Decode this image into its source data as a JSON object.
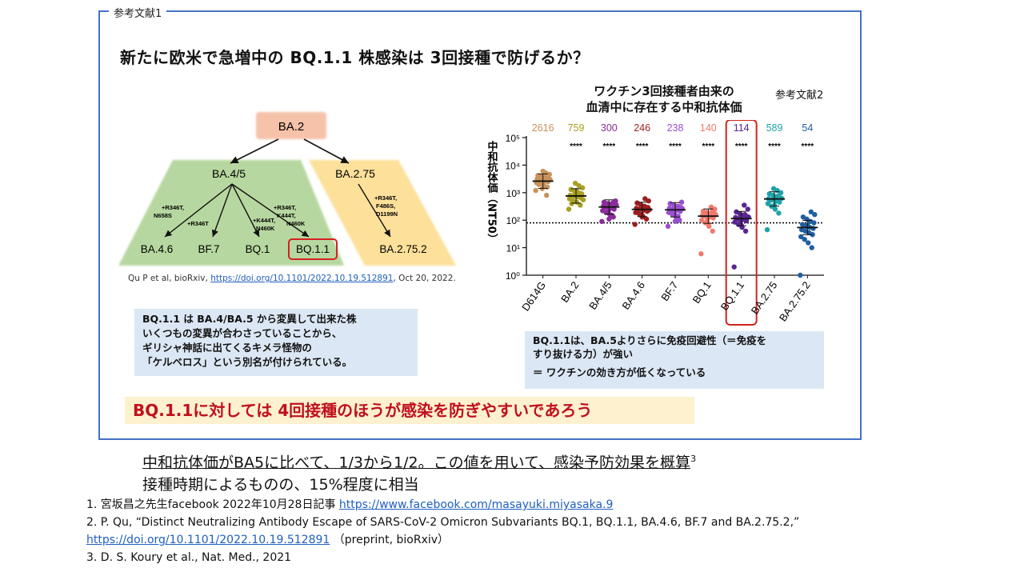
{
  "slide": {
    "frame_label": "参考文献1",
    "title": "新たに欧米で急増中の BQ.1.1 株感染は 3回接種で防げるか？"
  },
  "tree": {
    "root": "BA.2",
    "left_parent": "BA.4/5",
    "right_parent": "BA.2.75",
    "left_children": [
      "BA.4.6",
      "BF.7",
      "BQ.1",
      "BQ.1.1"
    ],
    "right_child": "BA.2.75.2",
    "mutation_labels": {
      "ba46": [
        "+R346T,",
        "N658S"
      ],
      "bf7": [
        "+R346T"
      ],
      "bq1": [
        "+K444T,",
        "N460K"
      ],
      "bq11": [
        "+R346T,",
        "K444T,",
        "N460K"
      ],
      "ba2752": [
        "+R346T,",
        "F486S,",
        "D1199N"
      ]
    },
    "colors": {
      "root": "#f6c2aa",
      "ba45_region": "#b7d7a0",
      "ba275_region": "#fde09a",
      "highlight": "#d32121"
    }
  },
  "citation": {
    "prefix": "Qu P et al, bioRxiv, ",
    "link": "https://doi.org/10.1101/2022.10.19.512891",
    "suffix": ", Oct 20, 2022."
  },
  "note_left": {
    "lines": [
      "BQ.1.1 は BA.4/BA.5 から変異して出来た株",
      "いくつもの変異が合わさっていることから、",
      "ギリシャ神話に出てくるキメラ怪物の",
      "「ケルベロス」という別名が付けられている。"
    ]
  },
  "conclusion": "BQ.1.1に対しては 4回接種のほうが感染を防ぎやすいであろう",
  "chart_header": {
    "title_line1": "ワクチン3回接種者由来の",
    "title_line2": "血清中に存在する中和抗体価",
    "ref2": "参考文献2"
  },
  "chart_data": {
    "type": "scatter",
    "categories": [
      "D614G",
      "BA.2",
      "BA.4/5",
      "BA.4.6",
      "BF.7",
      "BQ.1",
      "BQ.1.1",
      "BA.2.75",
      "BA.2.75.2"
    ],
    "geomean_labels": [
      "2616",
      "759",
      "300",
      "246",
      "238",
      "140",
      "114",
      "589",
      "54"
    ],
    "geomean_values": [
      2616,
      759,
      300,
      246,
      238,
      140,
      114,
      589,
      54
    ],
    "significance": [
      "",
      "****",
      "****",
      "****",
      "****",
      "****",
      "****",
      "****",
      "****"
    ],
    "colors": [
      "#c8925a",
      "#a8a020",
      "#8a2c9a",
      "#9c1f1f",
      "#9a4fd0",
      "#f07a6e",
      "#5a2592",
      "#1fa3a8",
      "#1f5fa0"
    ],
    "ylabel": "中和抗体価（NT50）",
    "yscale": "log",
    "ylim": [
      1,
      100000
    ],
    "ytick_labels": [
      "10⁰",
      "10¹",
      "10²",
      "10³",
      "10⁴",
      "10⁵"
    ],
    "reference_line": 80,
    "highlight_category": "BQ.1.1",
    "points": [
      [
        1200,
        1600,
        1900,
        2100,
        2300,
        2500,
        2700,
        2900,
        3100,
        3300,
        3600,
        3900,
        4200,
        4600,
        5200,
        1400,
        2000,
        3000,
        800,
        6000
      ],
      [
        250,
        350,
        450,
        500,
        600,
        650,
        700,
        750,
        800,
        900,
        1000,
        1100,
        1300,
        1500,
        1800,
        2200,
        400,
        550,
        950,
        1200
      ],
      [
        90,
        130,
        160,
        190,
        220,
        250,
        270,
        300,
        320,
        350,
        380,
        400,
        450,
        500,
        150,
        210,
        290,
        360,
        420,
        110
      ],
      [
        70,
        110,
        140,
        170,
        190,
        210,
        230,
        250,
        270,
        290,
        320,
        360,
        420,
        500,
        600,
        160,
        200,
        240,
        300,
        130
      ],
      [
        60,
        100,
        130,
        160,
        190,
        210,
        230,
        250,
        270,
        290,
        320,
        350,
        400,
        450,
        140,
        180,
        220,
        260,
        310,
        90
      ],
      [
        6,
        40,
        60,
        80,
        100,
        120,
        130,
        140,
        150,
        160,
        170,
        190,
        210,
        250,
        300,
        110,
        145,
        165,
        200,
        75
      ],
      [
        2,
        40,
        55,
        70,
        85,
        95,
        105,
        115,
        125,
        135,
        150,
        170,
        200,
        250,
        350,
        90,
        110,
        130,
        160,
        65
      ],
      [
        45,
        180,
        250,
        320,
        400,
        450,
        500,
        550,
        600,
        650,
        700,
        800,
        900,
        1000,
        1200,
        1400,
        520,
        620,
        750,
        350
      ],
      [
        1,
        10,
        15,
        20,
        25,
        30,
        35,
        40,
        45,
        50,
        55,
        60,
        70,
        80,
        90,
        110,
        130,
        160,
        200,
        65
      ]
    ]
  },
  "note_right": {
    "line1": "BQ.1.1は、BA.5よりさらに免疫回避性（＝免疫を",
    "line2": "すり抜ける力）が強い",
    "line3": "＝ ワクチンの効き方が低くなっている"
  },
  "summary": {
    "line1": "中和抗体価がBA5に比べて、1/3から1/2。この値を用いて、感染予防効果を概算",
    "line1_sup": "3",
    "line2": "接種時期によるものの、15%程度に相当"
  },
  "references": {
    "ref1_prefix": "1. 宮坂昌之先生facebook 2022年10月28日記事 ",
    "ref1_link": "https://www.facebook.com/masayuki.miyasaka.9",
    "ref2_text": "2. P. Qu, “Distinct Neutralizing Antibody Escape of SARS-CoV-2 Omicron Subvariants BQ.1, BQ.1.1, BA.4.6, BF.7 and BA.2.75.2,”",
    "ref2_link": "https://doi.org/10.1101/2022.10.19.512891",
    "ref2_suffix": "（preprint, bioRxiv）",
    "ref3": "3. D. S. Koury et al., Nat. Med., 2021"
  }
}
